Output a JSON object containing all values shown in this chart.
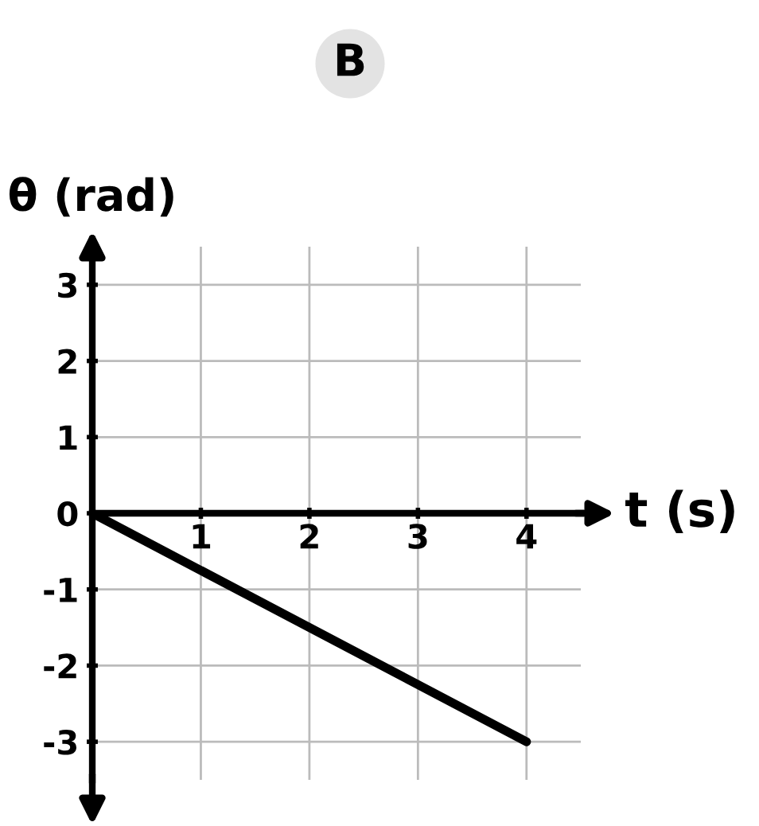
{
  "chart_data": {
    "type": "line",
    "title": "B",
    "xlabel": "t (s)",
    "ylabel": "θ (rad)",
    "x": [
      0,
      4
    ],
    "series": [
      {
        "color": "#000000",
        "values": [
          0,
          -3
        ]
      }
    ],
    "xlim": [
      0,
      4.5
    ],
    "ylim": [
      -3.5,
      3.5
    ],
    "xticks": [
      1,
      2,
      3,
      4
    ],
    "yticks": [
      -3,
      -2,
      -1,
      0,
      1,
      2,
      3
    ],
    "grid": true,
    "marker": "none",
    "line_style": "solid"
  }
}
